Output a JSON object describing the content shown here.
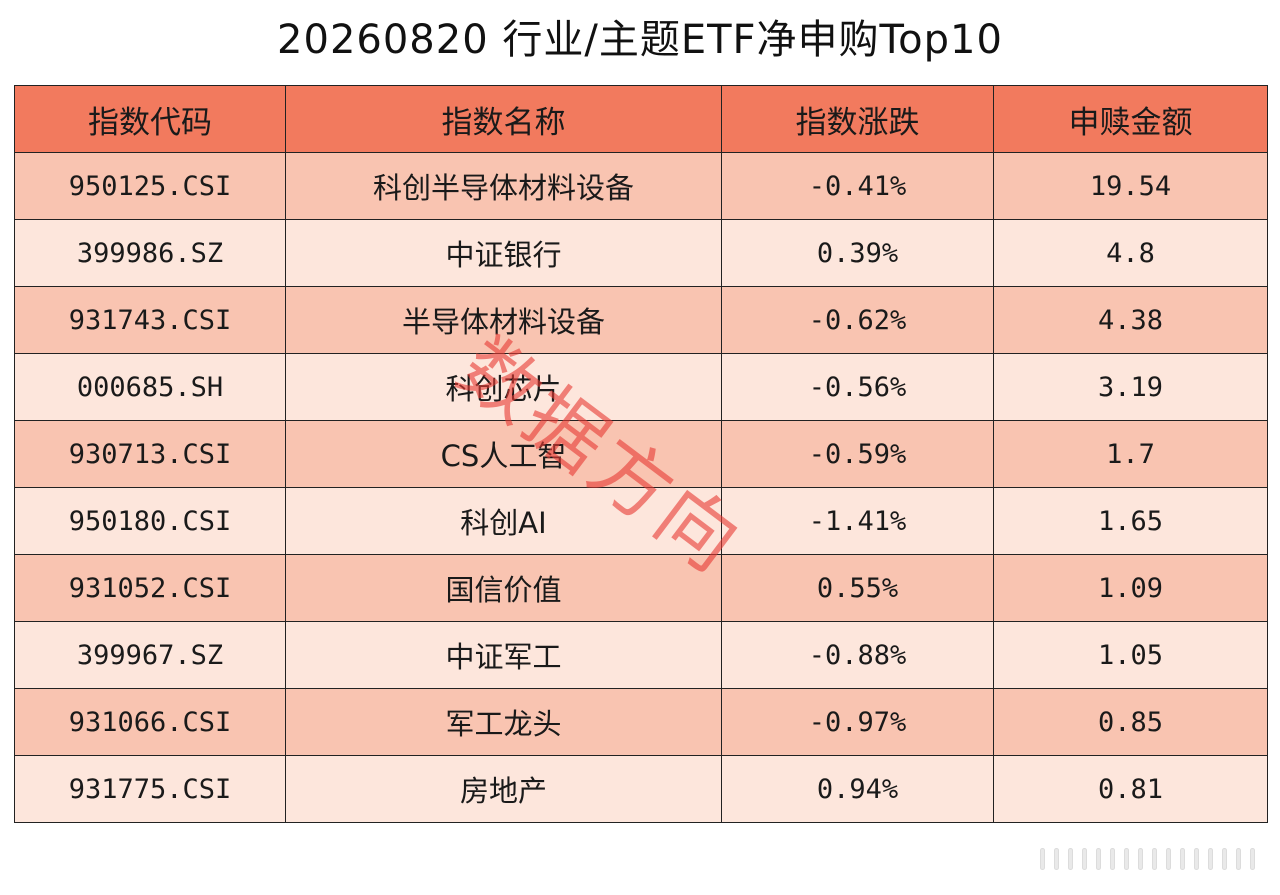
{
  "title": "20260820 行业/主题ETF净申购Top10",
  "colors": {
    "header_bg": "#f27a5e",
    "row_odd_bg": "#f9c4b1",
    "row_even_bg": "#fde6dc",
    "border": "#222222",
    "watermark": "#e83a34"
  },
  "table": {
    "headers": [
      "指数代码",
      "指数名称",
      "指数涨跌",
      "申赎金额"
    ],
    "rows": [
      [
        "950125.CSI",
        "科创半导体材料设备",
        "-0.41%",
        "19.54"
      ],
      [
        "399986.SZ",
        "中证银行",
        "0.39%",
        "4.8"
      ],
      [
        "931743.CSI",
        "半导体材料设备",
        "-0.62%",
        "4.38"
      ],
      [
        "000685.SH",
        "科创芯片",
        "-0.56%",
        "3.19"
      ],
      [
        "930713.CSI",
        "CS人工智",
        "-0.59%",
        "1.7"
      ],
      [
        "950180.CSI",
        "科创AI",
        "-1.41%",
        "1.65"
      ],
      [
        "931052.CSI",
        "国信价值",
        "0.55%",
        "1.09"
      ],
      [
        "399967.SZ",
        "中证军工",
        "-0.88%",
        "1.05"
      ],
      [
        "931066.CSI",
        "军工龙头",
        "-0.97%",
        "0.85"
      ],
      [
        "931775.CSI",
        "房地产",
        "0.94%",
        "0.81"
      ]
    ]
  },
  "watermark": "数据方向"
}
